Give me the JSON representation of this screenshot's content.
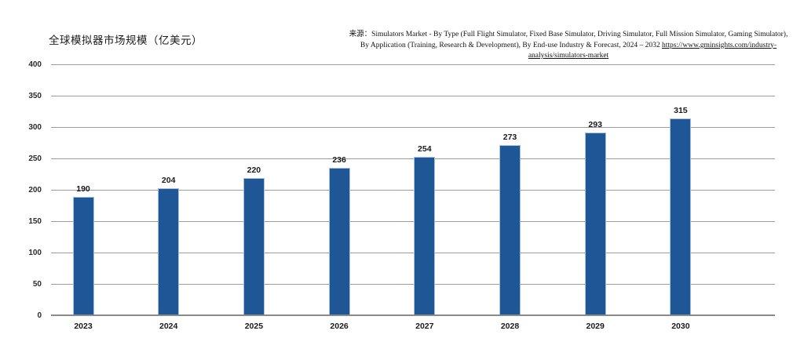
{
  "page": {
    "background": "#ffffff"
  },
  "header": {
    "title": "全球模拟器市场规模（亿美元）"
  },
  "source": {
    "label": "来源：",
    "text": "Simulators Market - By Type (Full Flight Simulator, Fixed Base Simulator, Driving Simulator, Full Mission Simulator, Gaming Simulator), By Application (Training, Research &  Development), By End-use Industry &  Forecast, 2024 – 2032 ",
    "link": "https://www.gminsights.com/industry-analysis/simulators-market"
  },
  "chart_data": {
    "type": "bar",
    "title": "全球模拟器市场规模（亿美元）",
    "categories": [
      "2023",
      "2024",
      "2025",
      "2026",
      "2027",
      "2028",
      "2029",
      "2030"
    ],
    "values": [
      190,
      204,
      220,
      236,
      254,
      273,
      293,
      315
    ],
    "xlabel": "",
    "ylabel": "",
    "ylim": [
      0,
      400
    ],
    "ytick_step": 50,
    "grid": true,
    "legend": false,
    "data_labels": true,
    "colors": {
      "bar": "#1F5796",
      "bar_border": "#A7C1DF",
      "gridline": "#9C9C9C",
      "axis_line": "#8A8A8A",
      "text": "#1A1A1A"
    }
  }
}
